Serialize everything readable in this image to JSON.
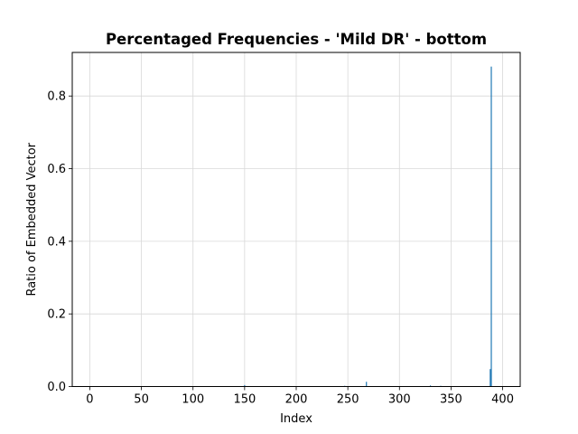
{
  "chart_data": {
    "type": "bar",
    "title": "Percentaged Frequencies - 'Mild DR' - bottom",
    "xlabel": "Index",
    "ylabel": "Ratio of Embedded Vector",
    "xlim": [
      -17,
      417
    ],
    "ylim": [
      0,
      0.92
    ],
    "xticks": [
      0,
      50,
      100,
      150,
      200,
      250,
      300,
      350,
      400
    ],
    "yticks": [
      0.0,
      0.2,
      0.4,
      0.6,
      0.8
    ],
    "ytick_labels": [
      "0.0",
      "0.2",
      "0.4",
      "0.6",
      "0.8"
    ],
    "grid": true,
    "bar_color": "#1f77b4",
    "x": [
      150,
      247,
      268,
      330,
      340,
      388,
      389
    ],
    "values": [
      0.004,
      0.002,
      0.013,
      0.003,
      0.002,
      0.048,
      0.881
    ]
  }
}
